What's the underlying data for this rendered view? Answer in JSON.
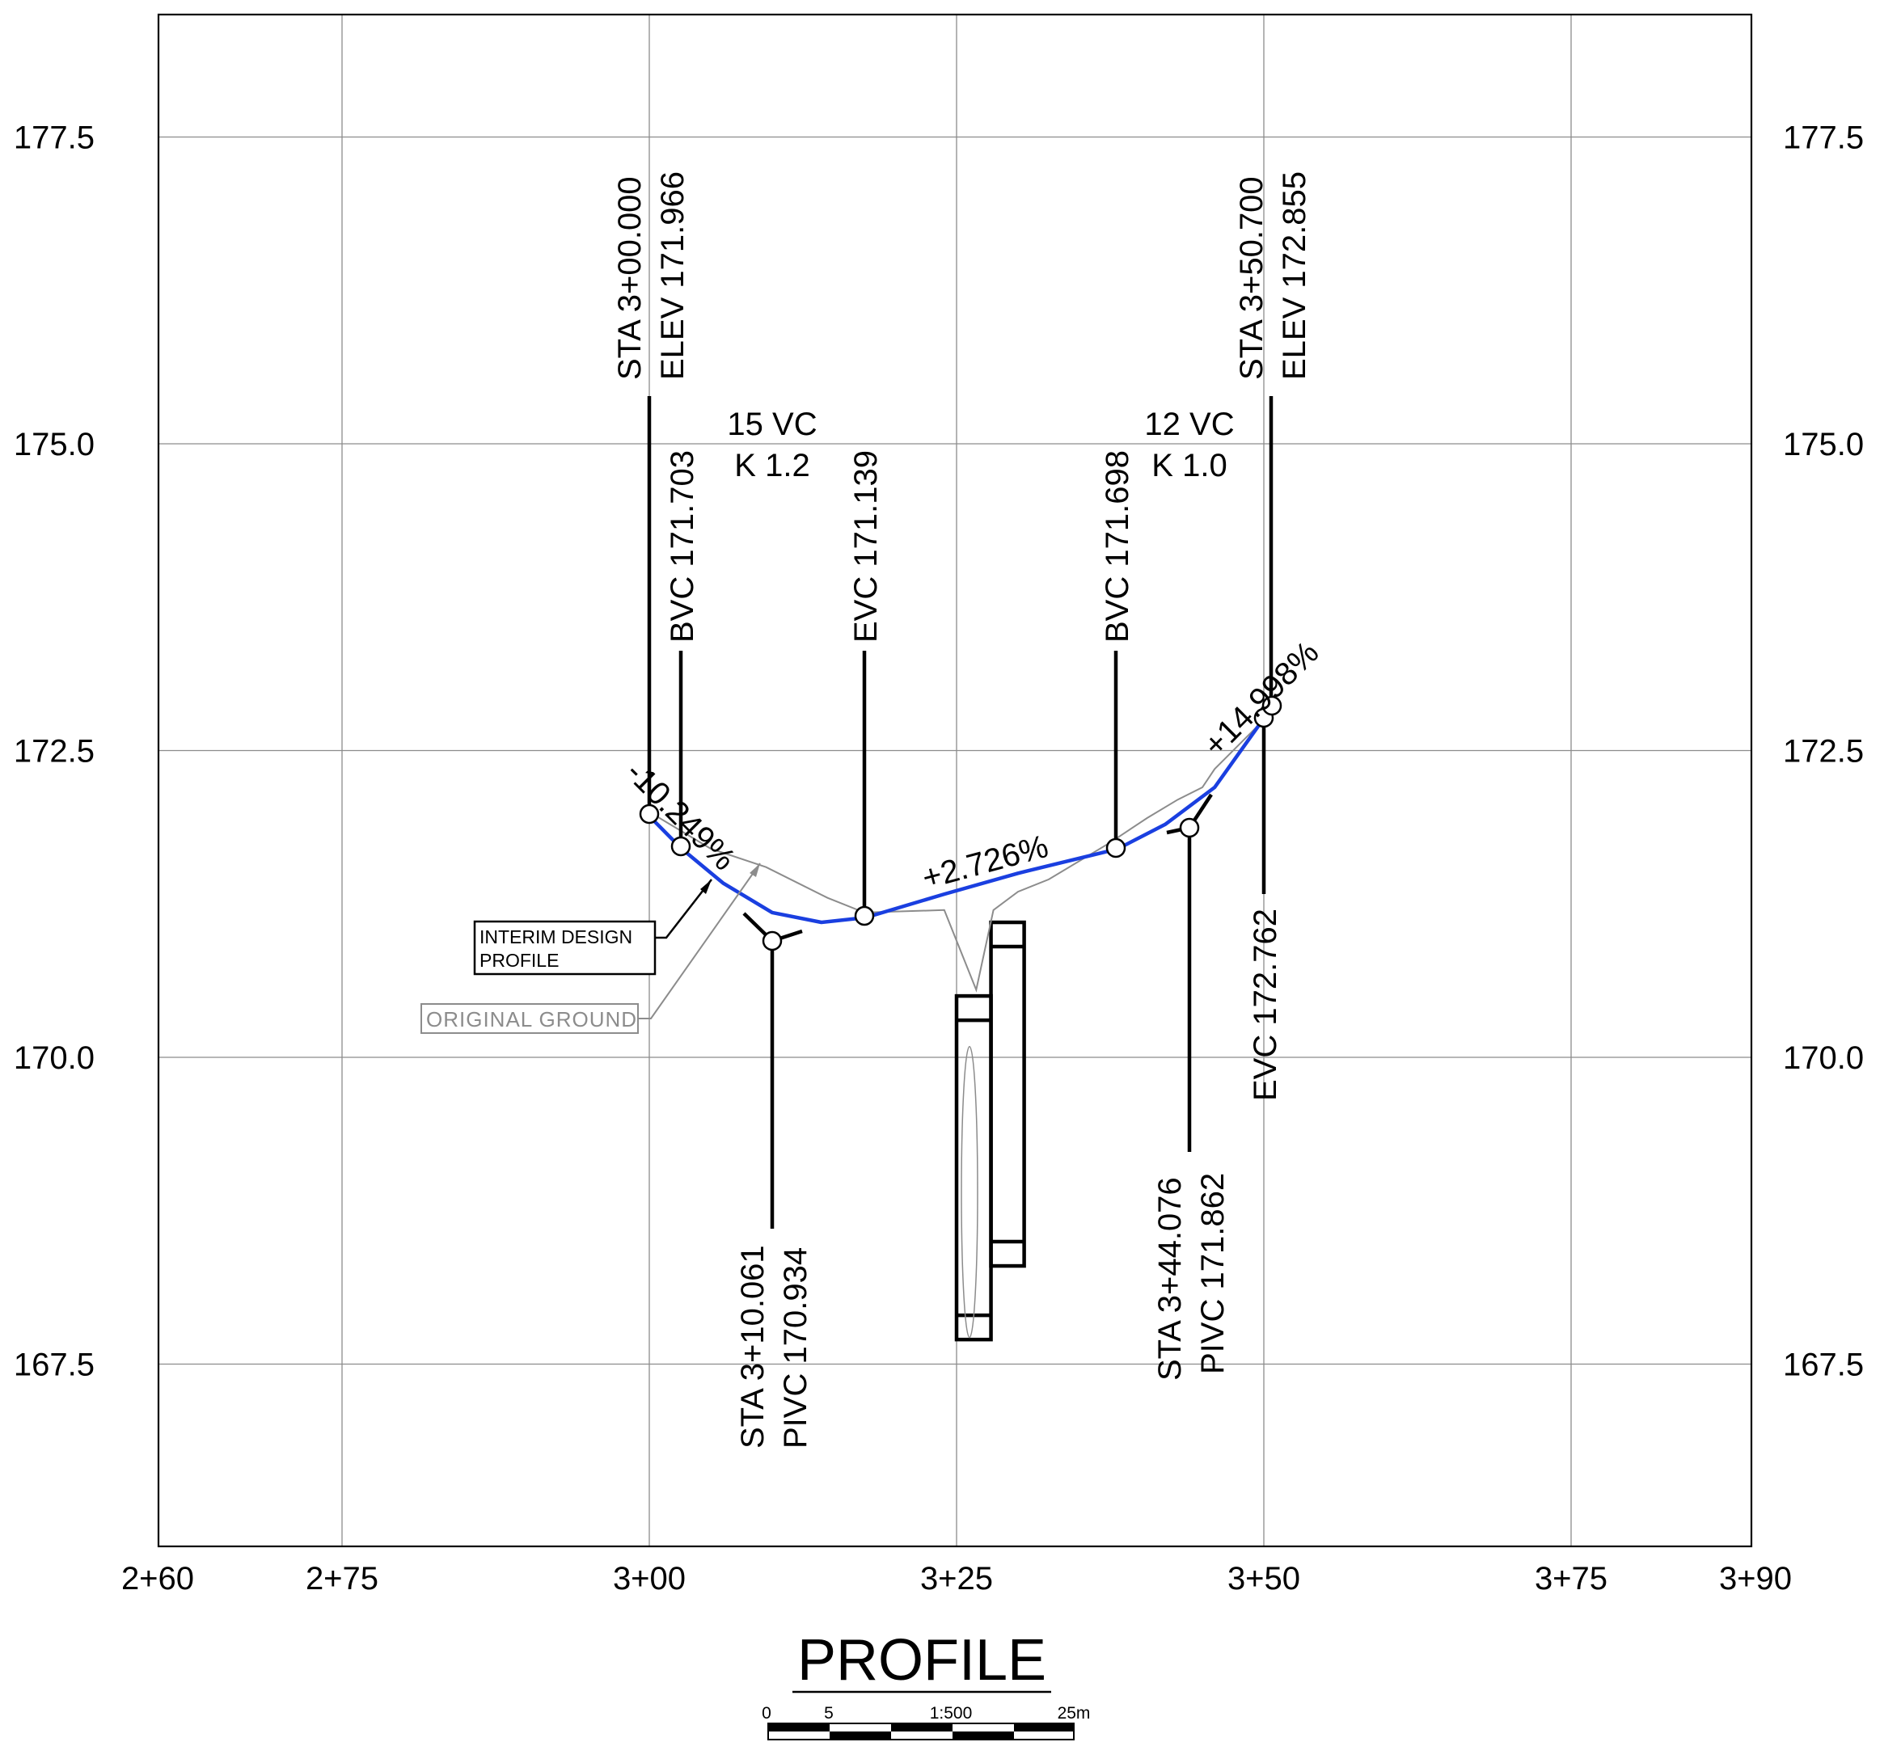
{
  "chart_data": {
    "type": "line",
    "title": "PROFILE",
    "x_ticks": [
      "2+60",
      "2+75",
      "3+00",
      "3+25",
      "3+50",
      "3+75",
      "3+90"
    ],
    "y_ticks": [
      "177.5",
      "175.0",
      "172.5",
      "170.0",
      "167.5"
    ],
    "xlim": [
      260,
      390
    ],
    "ylim": [
      166.0,
      178.5
    ],
    "grid": true,
    "series": [
      {
        "name": "INTERIM DESIGN PROFILE",
        "color": "#1a3fe0",
        "points": [
          [
            300.0,
            171.966
          ],
          [
            302.6,
            171.703
          ],
          [
            306.0,
            171.42
          ],
          [
            310.0,
            171.18
          ],
          [
            314.0,
            171.1
          ],
          [
            317.6,
            171.139
          ],
          [
            324.0,
            171.33
          ],
          [
            330.0,
            171.5
          ],
          [
            338.1,
            171.698
          ],
          [
            342.0,
            171.9
          ],
          [
            346.0,
            172.2
          ],
          [
            350.0,
            172.762
          ],
          [
            350.7,
            172.855
          ]
        ]
      },
      {
        "name": "ORIGINAL GROUND",
        "color": "#8c8c8c",
        "points": [
          [
            300.0,
            172.0
          ],
          [
            305.0,
            171.7
          ],
          [
            309.5,
            171.55
          ],
          [
            314.5,
            171.3
          ],
          [
            317.5,
            171.18
          ],
          [
            324.0,
            171.2
          ],
          [
            326.6,
            170.55
          ],
          [
            328.0,
            171.2
          ],
          [
            330.0,
            171.35
          ],
          [
            332.5,
            171.45
          ],
          [
            337.5,
            171.75
          ],
          [
            340.5,
            171.95
          ],
          [
            343.0,
            172.1
          ],
          [
            345.0,
            172.2
          ],
          [
            346.0,
            172.35
          ],
          [
            349.5,
            172.7
          ]
        ]
      }
    ],
    "curve_points": [
      {
        "sta": 300.0,
        "elev": 171.966
      },
      {
        "sta": 302.6,
        "elev": 171.703
      },
      {
        "sta": 317.6,
        "elev": 171.139
      },
      {
        "sta": 338.1,
        "elev": 171.698
      },
      {
        "sta": 350.0,
        "elev": 172.762
      },
      {
        "sta": 350.7,
        "elev": 172.855
      }
    ],
    "pivc_points": [
      {
        "sta": 310.061,
        "elev": 170.934
      },
      {
        "sta": 344.076,
        "elev": 171.862
      }
    ],
    "annotations": {
      "start_sta": "STA 3+00.000",
      "start_elev": "ELEV 171.966",
      "end_sta": "STA 3+50.700",
      "end_elev": "ELEV 172.855",
      "bvc1": "BVC 171.703",
      "evc1": "EVC 171.139",
      "bvc2": "BVC 171.698",
      "evc2": "EVC 172.762",
      "vc1_length": "15 VC",
      "vc1_k": "K 1.2",
      "vc2_length": "12 VC",
      "vc2_k": "K 1.0",
      "grade1": "-10.249%",
      "grade2": "+2.726%",
      "grade3": "+14.998%",
      "pivc1_sta": "STA 3+10.061",
      "pivc1_elev": "PIVC 170.934",
      "pivc2_sta": "STA 3+44.076",
      "pivc2_elev": "PIVC 171.862",
      "interim_label_1": "INTERIM DESIGN",
      "interim_label_2": "PROFILE",
      "ground_label": "ORIGINAL  GROUND"
    },
    "culvert_rects": [
      {
        "sta0": 325.0,
        "sta1": 327.8,
        "elev_top": 170.5,
        "elev_bot": 167.7
      },
      {
        "sta0": 327.8,
        "sta1": 330.5,
        "elev_top": 171.1,
        "elev_bot": 168.3
      }
    ]
  },
  "scale_bar": {
    "labels": [
      "0",
      "5",
      "1:500",
      "25m"
    ]
  }
}
